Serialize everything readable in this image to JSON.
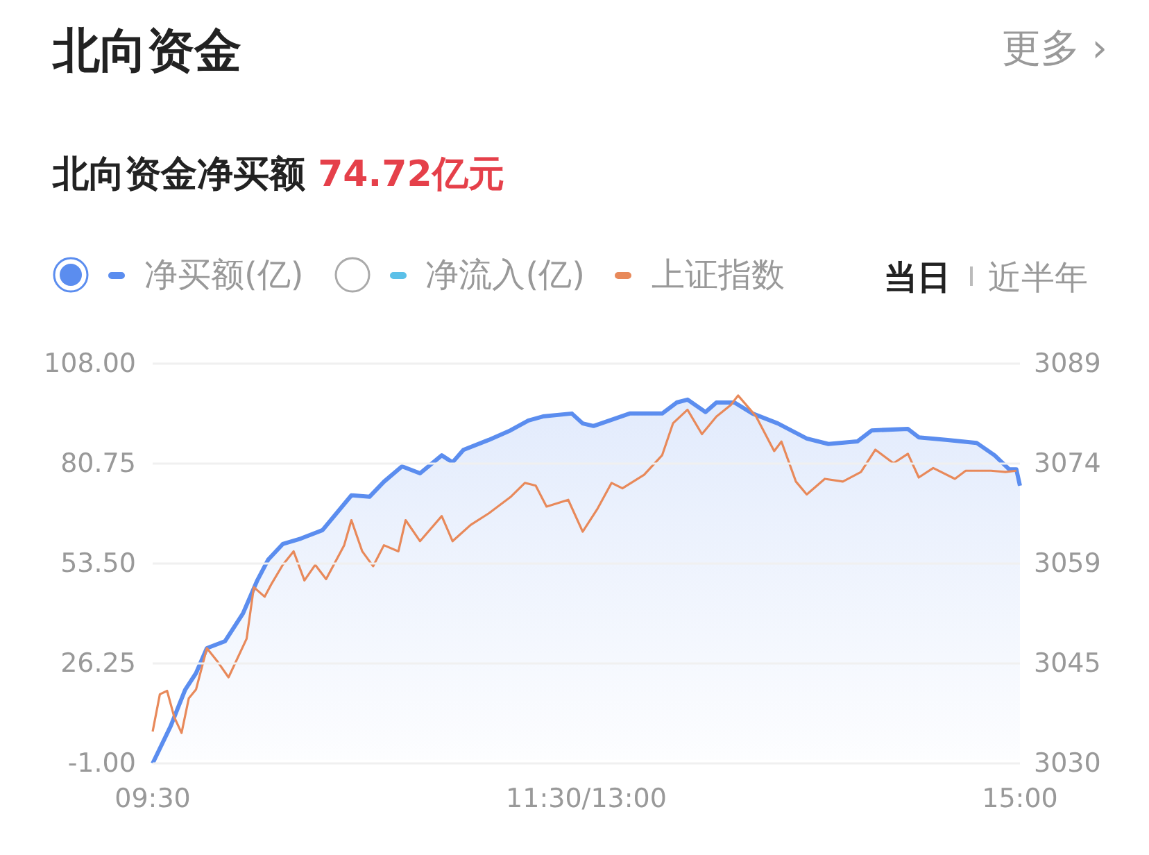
{
  "chart_data": {
    "type": "line",
    "title": "北向资金",
    "subtitle": "北向资金净买额 74.72亿元",
    "annotations": [
      "更多 ›",
      "当日",
      "近半年"
    ],
    "categories": [
      "09:30",
      null,
      null,
      null,
      null,
      null,
      null,
      null,
      null,
      null,
      null,
      null,
      null,
      null,
      null,
      null,
      null,
      null,
      null,
      null,
      null,
      null,
      null,
      null,
      null,
      null,
      null,
      null,
      null,
      null,
      null,
      null,
      null,
      null,
      null,
      null,
      null,
      null,
      null,
      null,
      null,
      null,
      null,
      null,
      null,
      null,
      null,
      null,
      null,
      null,
      null,
      null,
      null,
      null,
      null,
      null,
      null,
      null,
      null,
      null,
      null,
      null,
      null,
      null,
      null,
      null,
      null,
      null,
      null,
      null,
      null,
      null,
      null,
      null,
      null,
      null,
      null,
      null,
      null,
      null,
      null,
      null,
      null,
      null,
      null,
      null,
      null,
      null,
      null,
      null,
      null,
      null,
      null,
      null,
      null,
      null,
      null,
      null,
      null,
      null,
      null,
      null,
      null,
      null,
      null,
      null,
      null,
      null,
      null,
      null,
      null,
      null,
      null,
      null,
      null,
      null,
      null,
      null,
      null,
      null,
      "11:30/13:00",
      null,
      null,
      null,
      null,
      null,
      null,
      null,
      null,
      null,
      null,
      null,
      null,
      null,
      null,
      null,
      null,
      null,
      null,
      null,
      null,
      null,
      null,
      null,
      null,
      null,
      null,
      null,
      null,
      null,
      null,
      null,
      null,
      null,
      null,
      null,
      null,
      null,
      null,
      null,
      null,
      null,
      null,
      null,
      null,
      null,
      null,
      null,
      null,
      null,
      null,
      null,
      null,
      null,
      null,
      null,
      null,
      null,
      null,
      null,
      null,
      null,
      null,
      null,
      null,
      null,
      null,
      null,
      null,
      null,
      null,
      null,
      null,
      null,
      null,
      null,
      null,
      null,
      null,
      null,
      null,
      null,
      null,
      null,
      null,
      null,
      null,
      null,
      null,
      null,
      null,
      null,
      null,
      null,
      null,
      null,
      null,
      null,
      null,
      null,
      null,
      null,
      null,
      null,
      null,
      null,
      null,
      null,
      null,
      null,
      null,
      null,
      null,
      null,
      null,
      null,
      null,
      null,
      null,
      null,
      "15:00"
    ],
    "ylim": [
      -1,
      108
    ],
    "yticks": [
      {
        "value": -1,
        "label": "-1.00"
      },
      {
        "value": 26.25,
        "label": "26.25"
      },
      {
        "value": 53.5,
        "label": "53.50"
      },
      {
        "value": 80.75,
        "label": "80.75"
      },
      {
        "value": 108,
        "label": "108.00"
      }
    ],
    "y2lim": [
      3030,
      3089
    ],
    "y2ticks": [
      {
        "value": 3030,
        "label": "3030"
      },
      {
        "value": 3044.75,
        "label": "3045"
      },
      {
        "value": 3059.5,
        "label": "3059"
      },
      {
        "value": 3074.25,
        "label": "3074"
      },
      {
        "value": 3089,
        "label": "3089"
      }
    ],
    "grid": "y",
    "marker": "none",
    "legend": "top left",
    "series": [
      {
        "name": "净买额(亿)",
        "type": "area",
        "color": "#5b8def",
        "values": [
          -1,
          null,
          null,
          null,
          null,
          9.2,
          null,
          null,
          null,
          19.1,
          null,
          null,
          23.6,
          null,
          null,
          30.4,
          null,
          null,
          null,
          null,
          32.3,
          null,
          null,
          null,
          null,
          39.9,
          null,
          null,
          null,
          49,
          null,
          null,
          54.6,
          null,
          null,
          null,
          58.8,
          null,
          null,
          null,
          null,
          60.3,
          null,
          null,
          null,
          null,
          null,
          62.6,
          null,
          null,
          null,
          null,
          null,
          null,
          null,
          72.1,
          null,
          null,
          null,
          null,
          71.7,
          null,
          null,
          null,
          75.8,
          null,
          null,
          null,
          null,
          80,
          null,
          null,
          null,
          null,
          78.1,
          null,
          null,
          null,
          null,
          null,
          83,
          null,
          null,
          81.1,
          null,
          null,
          84.5,
          null,
          null,
          null,
          null,
          null,
          null,
          87.2,
          null,
          null,
          null,
          null,
          null,
          89.8,
          null,
          null,
          null,
          null,
          92.5,
          null,
          null,
          null,
          93.6,
          null,
          null,
          null,
          null,
          null,
          null,
          null,
          94.4,
          null,
          null,
          91.7,
          null,
          null,
          91,
          null,
          null,
          null,
          null,
          null,
          null,
          null,
          null,
          null,
          94.4,
          null,
          null,
          null,
          null,
          null,
          null,
          null,
          null,
          94.4,
          null,
          null,
          null,
          97.4,
          null,
          null,
          98.2,
          null,
          null,
          null,
          null,
          94.8,
          null,
          null,
          97.4,
          null,
          null,
          null,
          null,
          97.4,
          null,
          null,
          null,
          null,
          94.4,
          null,
          null,
          null,
          null,
          null,
          null,
          91.7,
          null,
          null,
          null,
          null,
          null,
          null,
          null,
          87.6,
          null,
          null,
          null,
          null,
          null,
          86.1,
          null,
          null,
          null,
          null,
          null,
          null,
          null,
          86.8,
          null,
          null,
          null,
          89.8,
          null,
          null,
          null,
          null,
          null,
          null,
          null,
          null,
          null,
          90.2,
          null,
          null,
          87.9,
          null,
          null,
          null,
          null,
          null,
          null,
          null,
          87.2,
          null,
          null,
          null,
          null,
          null,
          null,
          null,
          86.4,
          null,
          null,
          null,
          null,
          83,
          null,
          null,
          null,
          79.2,
          null,
          79.2,
          74.7
        ]
      },
      {
        "name": "净流入(亿)",
        "color": "#5bc0e8",
        "values": [
          null,
          null,
          null,
          null,
          null,
          null,
          null,
          null,
          null,
          null,
          null,
          null,
          null,
          null,
          null,
          null,
          null,
          null,
          null,
          null,
          null,
          null,
          null,
          null,
          null,
          null,
          null,
          null,
          null,
          null,
          null,
          null,
          null,
          null,
          null,
          null,
          null,
          null,
          null,
          null,
          null,
          null,
          null,
          null,
          null,
          null,
          null,
          null,
          null,
          null,
          null,
          null,
          null,
          null,
          null,
          null,
          null,
          null,
          null,
          null,
          null,
          null,
          null,
          null,
          null,
          null,
          null,
          null,
          null,
          null,
          null,
          null,
          null,
          null,
          null,
          null,
          null,
          null,
          null,
          null,
          null,
          null,
          null,
          null,
          null,
          null,
          null,
          null,
          null,
          null,
          null,
          null,
          null,
          null,
          null,
          null,
          null,
          null,
          null,
          null,
          null,
          null,
          null,
          null,
          null,
          null,
          null,
          null,
          null,
          null,
          null,
          null,
          null,
          null,
          null,
          null,
          null,
          null,
          null,
          null,
          null,
          null,
          null,
          null,
          null,
          null,
          null,
          null,
          null,
          null,
          null,
          null,
          null,
          null,
          null,
          null,
          null,
          null,
          null,
          null,
          null,
          null,
          null,
          null,
          null,
          null,
          null,
          null,
          null,
          null,
          null,
          null,
          null,
          null,
          null,
          null,
          null,
          null,
          null,
          null,
          null,
          null,
          null,
          null,
          null,
          null,
          null,
          null,
          null,
          null,
          null,
          null,
          null,
          null,
          null,
          null,
          null,
          null,
          null,
          null,
          null,
          null,
          null,
          null,
          null,
          null,
          null,
          null,
          null,
          null,
          null,
          null,
          null,
          null,
          null,
          null,
          null,
          null,
          null,
          null,
          null,
          null,
          null,
          null,
          null,
          null,
          null,
          null,
          null,
          null,
          null,
          null,
          null,
          null,
          null,
          null,
          null,
          null,
          null,
          null,
          null,
          null,
          null,
          null,
          null,
          null,
          null,
          null,
          null,
          null,
          null,
          null,
          null,
          null,
          null,
          null,
          null,
          null,
          null,
          null,
          null
        ]
      },
      {
        "name": "上证指数",
        "type": "line",
        "axis": "y2",
        "color": "#e8895a",
        "values": [
          3034.7,
          null,
          3040.2,
          null,
          3040.7,
          null,
          3036.8,
          null,
          3034.5,
          null,
          3039.6,
          null,
          3040.9,
          null,
          null,
          3047,
          null,
          null,
          3045,
          null,
          null,
          3042.7,
          null,
          null,
          null,
          null,
          3048.4,
          null,
          3056,
          null,
          null,
          3054.6,
          null,
          3056.6,
          null,
          null,
          3059.3,
          null,
          null,
          3061.3,
          null,
          null,
          3057,
          null,
          null,
          3059.3,
          null,
          null,
          3057.2,
          null,
          null,
          null,
          null,
          3062.2,
          null,
          3065.9,
          null,
          null,
          3061.3,
          null,
          null,
          3059.1,
          null,
          null,
          3062.2,
          null,
          null,
          null,
          3061.3,
          null,
          3065.9,
          null,
          null,
          null,
          3062.8,
          null,
          null,
          null,
          null,
          null,
          3066.5,
          null,
          null,
          3062.8,
          null,
          null,
          null,
          null,
          3065.2,
          null,
          null,
          null,
          null,
          3066.9,
          null,
          null,
          null,
          null,
          null,
          3069.3,
          null,
          null,
          null,
          3071.4,
          null,
          null,
          3071,
          null,
          null,
          3067.9,
          null,
          null,
          null,
          null,
          null,
          3068.9,
          null,
          null,
          null,
          3064.2,
          null,
          null,
          null,
          3067.5,
          null,
          null,
          null,
          3071.4,
          null,
          null,
          3070.6,
          null,
          null,
          null,
          null,
          null,
          3072.6,
          null,
          null,
          null,
          null,
          3075.5,
          null,
          null,
          3080.2,
          null,
          null,
          null,
          3082.2,
          null,
          null,
          null,
          3078.6,
          null,
          null,
          null,
          3081.2,
          null,
          null,
          null,
          3082.9,
          null,
          3084.3,
          null,
          null,
          null,
          null,
          3081.2,
          null,
          null,
          null,
          null,
          3076.1,
          null,
          3077.5,
          null,
          null,
          null,
          3071.6,
          null,
          null,
          3069.7,
          null,
          null,
          null,
          null,
          3072,
          null,
          null,
          null,
          null,
          3071.6,
          null,
          null,
          null,
          null,
          3073,
          null,
          null,
          null,
          3076.3,
          null,
          null,
          null,
          null,
          3074.3,
          null,
          null,
          null,
          3075.7,
          null,
          null,
          3072.2,
          null,
          null,
          null,
          3073.6,
          null,
          null,
          null,
          null,
          null,
          3072,
          null,
          null,
          3073.2,
          null,
          null,
          null,
          null,
          null,
          null,
          3073.2,
          null,
          null,
          null,
          3073,
          null,
          null,
          3073.2,
          null
        ]
      }
    ]
  }
}
